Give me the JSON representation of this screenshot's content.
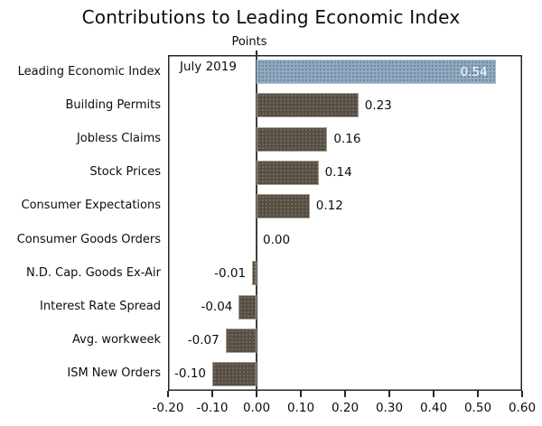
{
  "chart_data": {
    "type": "bar",
    "orientation": "horizontal",
    "title": "Contributions to Leading Economic Index",
    "axis_title": "Points",
    "annotation": "July 2019",
    "categories": [
      "Leading Economic Index",
      "Building Permits",
      "Jobless Claims",
      "Stock Prices",
      "Consumer Expectations",
      "Consumer Goods Orders",
      "N.D. Cap. Goods Ex-Air",
      "Interest Rate Spread",
      "Avg. workweek",
      "ISM New Orders"
    ],
    "values": [
      0.54,
      0.23,
      0.16,
      0.14,
      0.12,
      0.0,
      -0.01,
      -0.04,
      -0.07,
      -0.1
    ],
    "value_labels": [
      "0.54",
      "0.23",
      "0.16",
      "0.14",
      "0.12",
      "0.00",
      "-0.01",
      "-0.04",
      "-0.07",
      "-0.10"
    ],
    "xlim": [
      -0.2,
      0.6
    ],
    "xticks": [
      "-0.20",
      "-0.10",
      "0.00",
      "0.10",
      "0.20",
      "0.30",
      "0.40",
      "0.50",
      "0.60"
    ],
    "grid": "off",
    "legend": "none",
    "colors": {
      "highlight_bar": "#91a9bf",
      "highlight_dot": "#5d7f9c",
      "default_bar": "#574e44",
      "default_dot": "#7a7063",
      "frame": "#262626",
      "text": "#0d0d0d",
      "inside_label": "#ffffff"
    }
  }
}
